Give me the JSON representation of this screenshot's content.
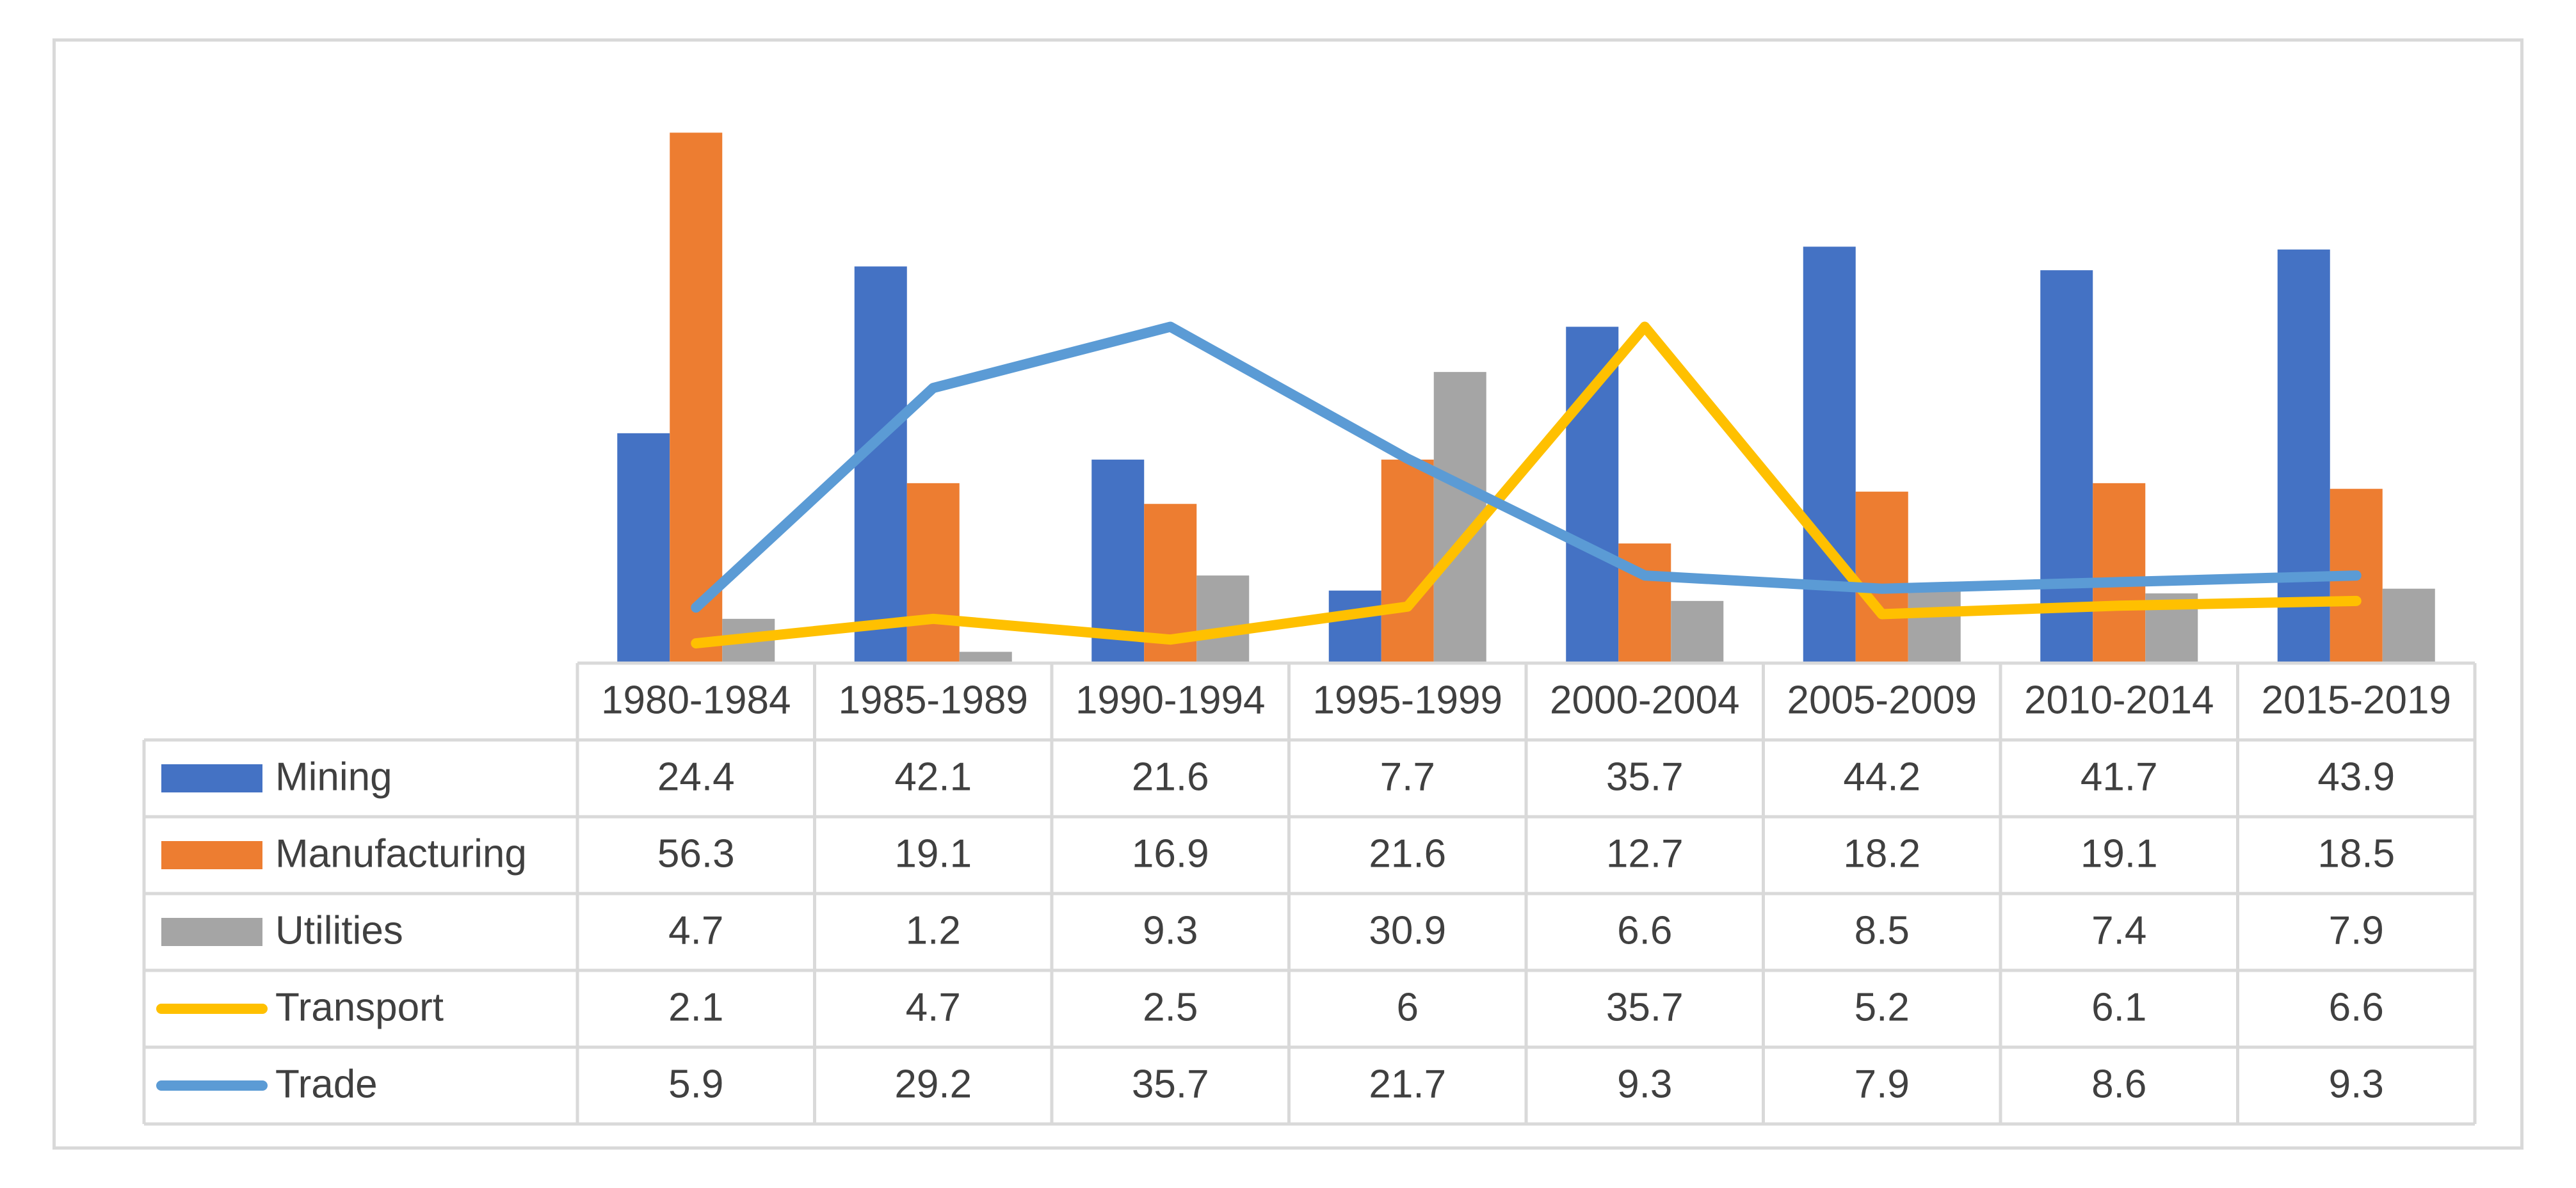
{
  "chart_data": {
    "type": "bar",
    "title": "",
    "xlabel": "",
    "ylabel": "",
    "ylim": [
      0,
      60
    ],
    "grid": false,
    "legend": "data-table",
    "categories": [
      "1980-1984",
      "1985-1989",
      "1990-1994",
      "1995-1999",
      "2000-2004",
      "2005-2009",
      "2010-2014",
      "2015-2019"
    ],
    "series": [
      {
        "name": "Mining",
        "kind": "bar",
        "color": "#4472C4",
        "values": [
          24.4,
          42.1,
          21.6,
          7.7,
          35.7,
          44.2,
          41.7,
          43.9
        ]
      },
      {
        "name": "Manufacturing",
        "kind": "bar",
        "color": "#ED7D31",
        "values": [
          56.3,
          19.1,
          16.9,
          21.6,
          12.7,
          18.2,
          19.1,
          18.5
        ]
      },
      {
        "name": "Utilities",
        "kind": "bar",
        "color": "#A5A5A5",
        "values": [
          4.7,
          1.2,
          9.3,
          30.9,
          6.6,
          8.5,
          7.4,
          7.9
        ]
      },
      {
        "name": "Transport",
        "kind": "line",
        "color": "#FFC000",
        "values": [
          2.1,
          4.7,
          2.5,
          6,
          35.7,
          5.2,
          6.1,
          6.6
        ]
      },
      {
        "name": "Trade",
        "kind": "line",
        "color": "#5B9BD5",
        "values": [
          5.9,
          29.2,
          35.7,
          21.7,
          9.3,
          7.9,
          8.6,
          9.3
        ]
      }
    ]
  }
}
